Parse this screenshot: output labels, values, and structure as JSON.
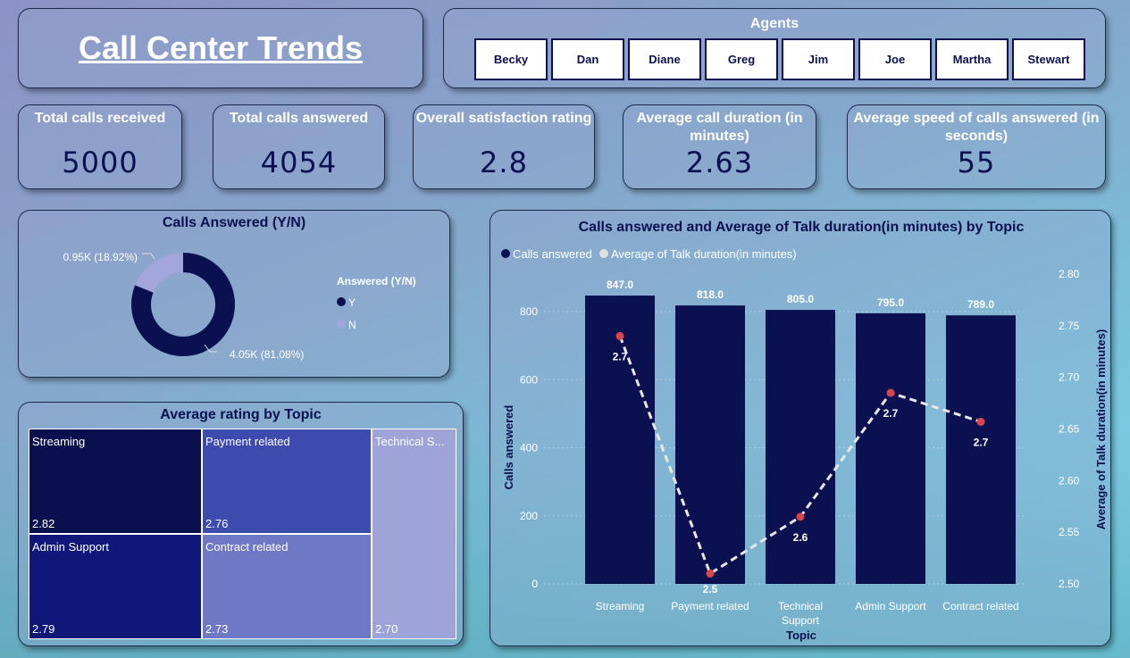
{
  "title": "Call Center Trends",
  "agents": {
    "label": "Agents",
    "items": [
      "Becky",
      "Dan",
      "Diane",
      "Greg",
      "Jim",
      "Joe",
      "Martha",
      "Stewart"
    ]
  },
  "kpis": [
    {
      "label": "Total calls received",
      "value": "5000"
    },
    {
      "label": "Total calls answered",
      "value": "4054"
    },
    {
      "label": "Overall satisfaction rating",
      "value": "2.8"
    },
    {
      "label": "Average call duration (in minutes)",
      "value": "2.63"
    },
    {
      "label": "Average speed of calls answered (in seconds)",
      "value": "55"
    }
  ],
  "donut": {
    "title": "Calls Answered (Y/N)",
    "legend_title": "Answered (Y/N)",
    "slices": [
      {
        "name": "Y",
        "value": 4054,
        "label": "4.05K (81.08%)",
        "color": "#0b1150"
      },
      {
        "name": "N",
        "value": 946,
        "label": "0.95K (18.92%)",
        "color": "#a3a6da"
      }
    ]
  },
  "treemap": {
    "title": "Average rating by Topic",
    "items": [
      {
        "name": "Streaming",
        "value": "2.82",
        "color": "#0a0f4e"
      },
      {
        "name": "Payment related",
        "value": "2.76",
        "color": "#3e4bae"
      },
      {
        "name": "Admin Support",
        "value": "2.79",
        "color": "#0f1878"
      },
      {
        "name": "Contract related",
        "value": "2.73",
        "color": "#6f78c4"
      },
      {
        "name": "Technical S...",
        "value": "2.70",
        "color": "#9ea4d8"
      }
    ]
  },
  "chart_data": {
    "type": "bar+line",
    "title": "Calls answered and Average of Talk duration(in minutes) by Topic",
    "xlabel": "Topic",
    "ylabel": "Calls answered",
    "y2label": "Average of Talk duration(in minutes)",
    "categories": [
      "Streaming",
      "Payment related",
      "Technical Support",
      "Admin Support",
      "Contract related"
    ],
    "ylim": [
      0,
      800
    ],
    "yticks": [
      "0",
      "200",
      "400",
      "600",
      "800"
    ],
    "y2lim": [
      2.5,
      2.8
    ],
    "y2ticks": [
      "2.50",
      "2.55",
      "2.60",
      "2.65",
      "2.70",
      "2.75",
      "2.80"
    ],
    "legend": "top-left",
    "grid": true,
    "series": [
      {
        "name": "Calls answered",
        "type": "bar",
        "color": "#0b1150",
        "values": [
          847,
          818,
          805,
          795,
          789
        ],
        "labels": [
          "847.0",
          "818.0",
          "805.0",
          "795.0",
          "789.0"
        ]
      },
      {
        "name": "Average of Talk duration(in minutes)",
        "type": "line",
        "color": "#e8e8e8",
        "marker": "#d9454f",
        "values": [
          2.74,
          2.51,
          2.565,
          2.685,
          2.657
        ],
        "labels": [
          "2.7",
          "2.5",
          "2.6",
          "2.7",
          "2.7"
        ]
      }
    ]
  }
}
